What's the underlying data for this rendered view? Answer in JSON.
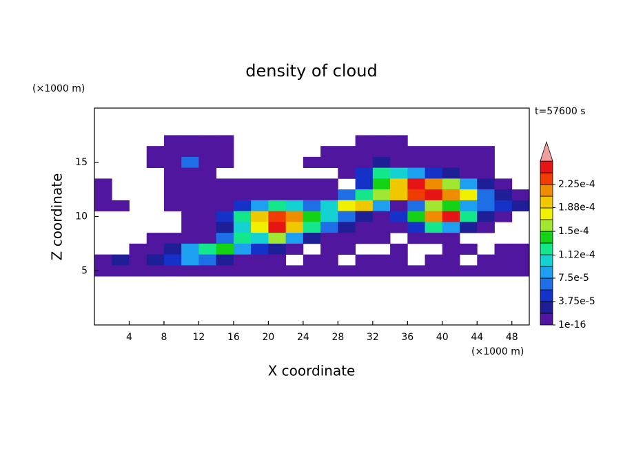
{
  "chart_data": {
    "type": "contour",
    "title": "density of cloud",
    "xlabel": "X coordinate",
    "ylabel": "Z coordinate",
    "x_unit_label": "(×1000 m)",
    "y_unit_label": "(×1000 m)",
    "time_label": "t=57600 s",
    "xlim": [
      0,
      50
    ],
    "ylim": [
      0,
      20
    ],
    "xticks": [
      4,
      8,
      12,
      16,
      20,
      24,
      28,
      32,
      36,
      40,
      44,
      48
    ],
    "yticks": [
      5,
      10,
      15
    ],
    "x": [
      1,
      3,
      5,
      7,
      9,
      11,
      13,
      15,
      17,
      19,
      21,
      23,
      25,
      27,
      29,
      31,
      33,
      35,
      37,
      39,
      41,
      43,
      45,
      47,
      49
    ],
    "y": [
      17,
      16,
      15,
      14,
      13,
      12,
      11,
      10,
      9,
      8,
      7,
      6,
      5
    ],
    "z": [
      [
        null,
        null,
        null,
        null,
        1e-05,
        1e-05,
        1e-05,
        1e-05,
        null,
        null,
        null,
        null,
        null,
        null,
        null,
        1e-05,
        1e-05,
        1e-05,
        null,
        null,
        null,
        null,
        null,
        null,
        null
      ],
      [
        null,
        null,
        null,
        1e-05,
        1e-05,
        1e-05,
        1e-05,
        1e-05,
        null,
        null,
        null,
        null,
        null,
        1e-05,
        1e-05,
        1e-05,
        1e-05,
        1e-05,
        1e-05,
        1e-05,
        1e-05,
        1e-05,
        1e-05,
        null,
        null
      ],
      [
        null,
        null,
        null,
        1e-05,
        1e-05,
        7e-05,
        1e-05,
        1e-05,
        null,
        null,
        null,
        null,
        1e-05,
        1e-05,
        1e-05,
        1e-05,
        3e-05,
        1e-05,
        1e-05,
        1e-05,
        1e-05,
        1e-05,
        1e-05,
        null,
        null
      ],
      [
        null,
        null,
        null,
        null,
        1e-05,
        1e-05,
        1e-05,
        null,
        null,
        null,
        null,
        null,
        null,
        null,
        1e-05,
        5e-05,
        0.00012,
        0.0001,
        8e-05,
        5e-05,
        3e-05,
        1e-05,
        1e-05,
        null,
        null
      ],
      [
        1e-05,
        null,
        null,
        null,
        1e-05,
        1e-05,
        1e-05,
        1e-05,
        1e-05,
        1e-05,
        1e-05,
        1e-05,
        1e-05,
        1e-05,
        null,
        5e-05,
        0.00014,
        0.0002,
        0.00025,
        0.00022,
        0.00016,
        8e-05,
        3e-05,
        1e-05,
        null
      ],
      [
        1e-05,
        null,
        null,
        null,
        1e-05,
        1e-05,
        1e-05,
        1e-05,
        1e-05,
        1e-05,
        1e-05,
        1e-05,
        1e-05,
        1e-05,
        7e-05,
        0.00012,
        0.00016,
        0.0002,
        0.00023,
        0.00025,
        0.00022,
        0.00018,
        7e-05,
        3e-05,
        1e-05
      ],
      [
        1e-05,
        1e-05,
        null,
        null,
        1e-05,
        1e-05,
        1e-05,
        1e-05,
        5e-05,
        8e-05,
        0.00012,
        0.0001,
        7e-05,
        0.0001,
        0.00018,
        0.0002,
        8e-05,
        1e-05,
        7e-05,
        0.00016,
        0.00014,
        8e-05,
        7e-05,
        5e-05,
        3e-05
      ],
      [
        null,
        null,
        null,
        null,
        null,
        1e-05,
        1e-05,
        5e-05,
        0.00012,
        0.0002,
        0.00023,
        0.00022,
        0.00014,
        0.0001,
        7e-05,
        3e-05,
        1e-05,
        5e-05,
        0.00014,
        0.00022,
        0.00025,
        0.00012,
        3e-05,
        1e-05,
        null
      ],
      [
        null,
        null,
        null,
        null,
        null,
        1e-05,
        1e-05,
        3e-05,
        0.0001,
        0.00018,
        0.00025,
        0.0002,
        0.00012,
        7e-05,
        3e-05,
        1e-05,
        1e-05,
        1e-05,
        5e-05,
        0.00012,
        8e-05,
        3e-05,
        1e-05,
        null,
        null
      ],
      [
        null,
        null,
        null,
        1e-05,
        1e-05,
        1e-05,
        1e-05,
        7e-05,
        0.00012,
        0.0001,
        0.00016,
        8e-05,
        3e-05,
        1e-05,
        1e-05,
        1e-05,
        1e-05,
        null,
        1e-05,
        1e-05,
        1e-05,
        null,
        null,
        null,
        null
      ],
      [
        null,
        null,
        1e-05,
        1e-05,
        3e-05,
        8e-05,
        0.00012,
        0.00014,
        8e-05,
        5e-05,
        3e-05,
        1e-05,
        null,
        1e-05,
        1e-05,
        null,
        null,
        1e-05,
        null,
        null,
        1e-05,
        1e-05,
        null,
        1e-05,
        1e-05
      ],
      [
        1e-05,
        3e-05,
        1e-05,
        3e-05,
        5e-05,
        8e-05,
        7e-05,
        3e-05,
        1e-05,
        1e-05,
        1e-05,
        null,
        1e-05,
        1e-05,
        null,
        1e-05,
        1e-05,
        1e-05,
        null,
        1e-05,
        1e-05,
        null,
        1e-05,
        1e-05,
        1e-05
      ],
      [
        1e-05,
        1e-05,
        1e-05,
        1e-05,
        1e-05,
        1e-05,
        1e-05,
        1e-05,
        1e-05,
        1e-05,
        1e-05,
        1e-05,
        1e-05,
        1e-05,
        1e-05,
        1e-05,
        1e-05,
        1e-05,
        1e-05,
        1e-05,
        1e-05,
        1e-05,
        1e-05,
        1e-05,
        1e-05
      ]
    ],
    "levels": [
      1e-16,
      1.875e-05,
      3.75e-05,
      5.625e-05,
      7.5e-05,
      9.375e-05,
      0.0001125,
      0.00013125,
      0.00015,
      0.00016875,
      0.0001875,
      0.00020625,
      0.000225,
      0.00024375,
      0.0002625
    ],
    "colors": [
      "#50179e",
      "#1e1e96",
      "#1432c8",
      "#1e6ee6",
      "#1ea0f0",
      "#14d2d2",
      "#14e68c",
      "#14d214",
      "#a0e632",
      "#f0f000",
      "#f0c800",
      "#f08c00",
      "#f03c00",
      "#e61414",
      "#f0a0a0"
    ],
    "colorbar_ticks": [
      {
        "value": 1e-16,
        "label": "1e-16"
      },
      {
        "value": 3.75e-05,
        "label": "3.75e-5"
      },
      {
        "value": 7.5e-05,
        "label": "7.5e-5"
      },
      {
        "value": 0.000112,
        "label": "1.12e-4"
      },
      {
        "value": 0.00015,
        "label": "1.5e-4"
      },
      {
        "value": 0.000188,
        "label": "1.88e-4"
      },
      {
        "value": 0.000225,
        "label": "2.25e-4"
      }
    ]
  }
}
